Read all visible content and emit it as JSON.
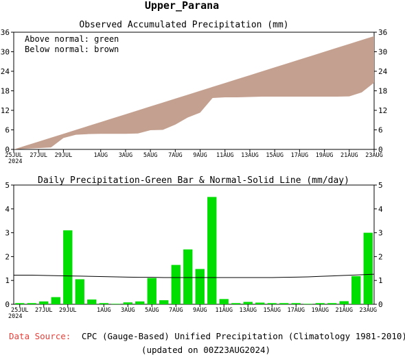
{
  "title": "Upper_Parana",
  "chart_data": [
    {
      "type": "area",
      "title": "Observed Accumulated Precipitation (mm)",
      "legend": [
        "Above normal: green",
        "Below normal: brown"
      ],
      "legend_placement": "top-left",
      "colors": {
        "above": "#00cc00",
        "below": "#c4a090"
      },
      "ylim": [
        0,
        36
      ],
      "yticks": [
        0,
        6,
        12,
        18,
        24,
        30,
        36
      ],
      "xticks": [
        "25JUL",
        "27JUL",
        "29JUL",
        "1AUG",
        "3AUG",
        "5AUG",
        "7AUG",
        "9AUG",
        "11AUG",
        "13AUG",
        "15AUG",
        "17AUG",
        "19AUG",
        "21AUG",
        "23AUG"
      ],
      "year_label": "2024",
      "days": 30,
      "series": [
        {
          "name": "Normal",
          "values": [
            0.0,
            1.2,
            2.4,
            3.6,
            4.8,
            6.0,
            7.2,
            8.4,
            9.6,
            10.8,
            12.0,
            13.2,
            14.4,
            15.6,
            16.8,
            18.0,
            19.2,
            20.4,
            21.6,
            22.8,
            24.0,
            25.2,
            26.4,
            27.6,
            28.8,
            30.0,
            31.2,
            32.4,
            33.6,
            34.8
          ]
        },
        {
          "name": "Observed",
          "values": [
            0.0,
            0.2,
            0.4,
            0.6,
            3.5,
            4.5,
            4.7,
            4.8,
            4.8,
            4.8,
            4.9,
            5.9,
            6.0,
            7.6,
            9.8,
            11.3,
            15.8,
            16.0,
            16.0,
            16.1,
            16.2,
            16.2,
            16.2,
            16.2,
            16.2,
            16.2,
            16.2,
            16.3,
            17.5,
            20.5
          ]
        }
      ]
    },
    {
      "type": "bar",
      "title": "Daily Precipitation-Green Bar & Normal-Solid Line (mm/day)",
      "ylim": [
        0,
        5
      ],
      "yticks": [
        0,
        1,
        2,
        3,
        4,
        5
      ],
      "xticks": [
        "25JUL",
        "27JUL",
        "29JUL",
        "1AUG",
        "3AUG",
        "5AUG",
        "7AUG",
        "9AUG",
        "11AUG",
        "13AUG",
        "15AUG",
        "17AUG",
        "19AUG",
        "21AUG",
        "23AUG"
      ],
      "year_label": "2024",
      "bar_color": "#00dd00",
      "bars": [
        0.05,
        0.05,
        0.12,
        0.3,
        3.1,
        1.05,
        0.2,
        0.05,
        0.02,
        0.08,
        0.12,
        1.1,
        0.17,
        1.65,
        2.3,
        1.48,
        4.5,
        0.22,
        0.05,
        0.1,
        0.07,
        0.05,
        0.05,
        0.05,
        0.02,
        0.05,
        0.05,
        0.13,
        1.18,
        3.0
      ],
      "normal": [
        1.22,
        1.22,
        1.21,
        1.2,
        1.19,
        1.18,
        1.17,
        1.16,
        1.15,
        1.14,
        1.13,
        1.13,
        1.12,
        1.12,
        1.12,
        1.12,
        1.12,
        1.12,
        1.12,
        1.12,
        1.12,
        1.12,
        1.13,
        1.14,
        1.15,
        1.17,
        1.19,
        1.21,
        1.23,
        1.26
      ]
    }
  ],
  "footer": {
    "source_label": "Data Source:",
    "source_text": "CPC (Gauge-Based) Unified Precipitation (Climatology 1981-2010)",
    "updated": "(updated on 00Z23AUG2024)"
  }
}
